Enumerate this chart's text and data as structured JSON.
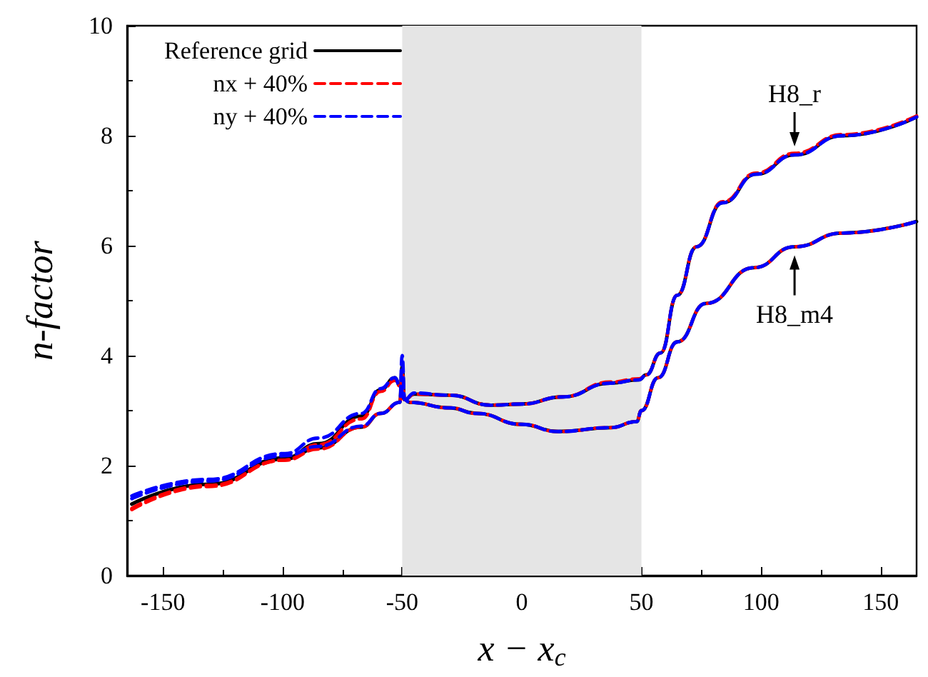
{
  "chart_data": {
    "type": "line",
    "xlabel": "x − x$_{c}$",
    "ylabel": "n-factor",
    "xlim": [
      -165,
      165
    ],
    "xticks": [
      -150,
      -100,
      -50,
      0,
      50,
      100,
      150
    ],
    "ylim": [
      0,
      10
    ],
    "yticks": [
      0,
      2,
      4,
      6,
      8,
      10
    ],
    "grid": false,
    "legend": "top left",
    "marker": "none",
    "bands": [
      {
        "axis": "x",
        "from": -50,
        "to": 50,
        "color": "#e5e5e5"
      }
    ],
    "annotations": [
      {
        "text": "H8_r",
        "x": 114,
        "y": 7.65
      },
      {
        "text": "H8_m4",
        "x": 114,
        "y": 5.98
      }
    ],
    "series": [
      {
        "name": "Reference grid",
        "color": "#000000",
        "line_style": "solid",
        "x": [
          -163,
          -131,
          -99,
          -85,
          -67,
          -59,
          -53,
          -51,
          -49,
          -45,
          -30,
          -13,
          0,
          17,
          37,
          49,
          52,
          58,
          65,
          73,
          84,
          98,
          114,
          134,
          165
        ],
        "values": [
          1.3,
          1.66,
          2.14,
          2.4,
          2.9,
          3.38,
          3.6,
          3.45,
          3.2,
          3.3,
          3.28,
          3.1,
          3.12,
          3.25,
          3.5,
          3.56,
          3.65,
          4.05,
          5.1,
          5.98,
          6.78,
          7.3,
          7.65,
          8.0,
          8.34
        ]
      },
      {
        "color": "#000000",
        "line_style": "solid",
        "x": [
          -163,
          -131,
          -99,
          -85,
          -67,
          -59,
          -51,
          -50,
          -49,
          -47,
          -30,
          -19,
          0,
          15,
          37,
          48,
          50,
          57,
          65,
          77,
          97,
          114,
          134,
          165
        ],
        "values": [
          1.3,
          1.66,
          2.12,
          2.32,
          2.7,
          2.95,
          3.15,
          3.8,
          3.2,
          3.15,
          3.05,
          2.95,
          2.75,
          2.62,
          2.69,
          2.8,
          3.0,
          3.6,
          4.25,
          4.95,
          5.6,
          5.98,
          6.23,
          6.44
        ]
      },
      {
        "name": "nx + 40%",
        "color": "#ff0000",
        "line_style": "dashed",
        "x": [
          -163,
          -131,
          -99,
          -85,
          -67,
          -59,
          -53,
          -51,
          -49,
          -45,
          -30,
          -13,
          0,
          17,
          37,
          49,
          52,
          58,
          65,
          73,
          84,
          98,
          114,
          134,
          165
        ],
        "values": [
          1.2,
          1.62,
          2.1,
          2.38,
          2.85,
          3.35,
          3.55,
          3.45,
          3.2,
          3.3,
          3.28,
          3.1,
          3.12,
          3.25,
          3.52,
          3.58,
          3.65,
          4.05,
          5.1,
          5.98,
          6.8,
          7.32,
          7.68,
          8.02,
          8.36
        ]
      },
      {
        "color": "#ff0000",
        "line_style": "dashed",
        "x": [
          -163,
          -131,
          -99,
          -85,
          -67,
          -59,
          -51,
          -50,
          -49,
          -47,
          -30,
          -19,
          0,
          15,
          37,
          48,
          50,
          57,
          65,
          77,
          97,
          114,
          134,
          165
        ],
        "values": [
          1.22,
          1.64,
          2.1,
          2.3,
          2.7,
          2.95,
          3.15,
          3.7,
          3.2,
          3.15,
          3.05,
          2.95,
          2.75,
          2.62,
          2.69,
          2.8,
          3.0,
          3.6,
          4.25,
          4.95,
          5.6,
          5.98,
          6.23,
          6.44
        ]
      },
      {
        "name": "ny + 40%",
        "color": "#0000ff",
        "line_style": "dashed",
        "x": [
          -163,
          -131,
          -99,
          -85,
          -67,
          -59,
          -53,
          -51,
          -49,
          -45,
          -30,
          -13,
          0,
          17,
          37,
          49,
          52,
          58,
          65,
          73,
          84,
          98,
          114,
          134,
          165
        ],
        "values": [
          1.45,
          1.75,
          2.22,
          2.5,
          2.95,
          3.4,
          3.6,
          3.45,
          3.2,
          3.32,
          3.28,
          3.1,
          3.12,
          3.25,
          3.5,
          3.56,
          3.65,
          4.05,
          5.1,
          5.98,
          6.78,
          7.3,
          7.65,
          8.0,
          8.34
        ]
      },
      {
        "color": "#0000ff",
        "line_style": "dashed",
        "x": [
          -163,
          -131,
          -99,
          -85,
          -67,
          -59,
          -51,
          -50,
          -49,
          -47,
          -30,
          -19,
          0,
          15,
          37,
          48,
          50,
          57,
          65,
          77,
          97,
          114,
          134,
          165
        ],
        "values": [
          1.4,
          1.72,
          2.18,
          2.35,
          2.72,
          2.95,
          3.15,
          4.0,
          3.2,
          3.15,
          3.05,
          2.95,
          2.75,
          2.62,
          2.69,
          2.8,
          3.0,
          3.6,
          4.25,
          4.95,
          5.6,
          5.98,
          6.23,
          6.44
        ]
      }
    ]
  }
}
